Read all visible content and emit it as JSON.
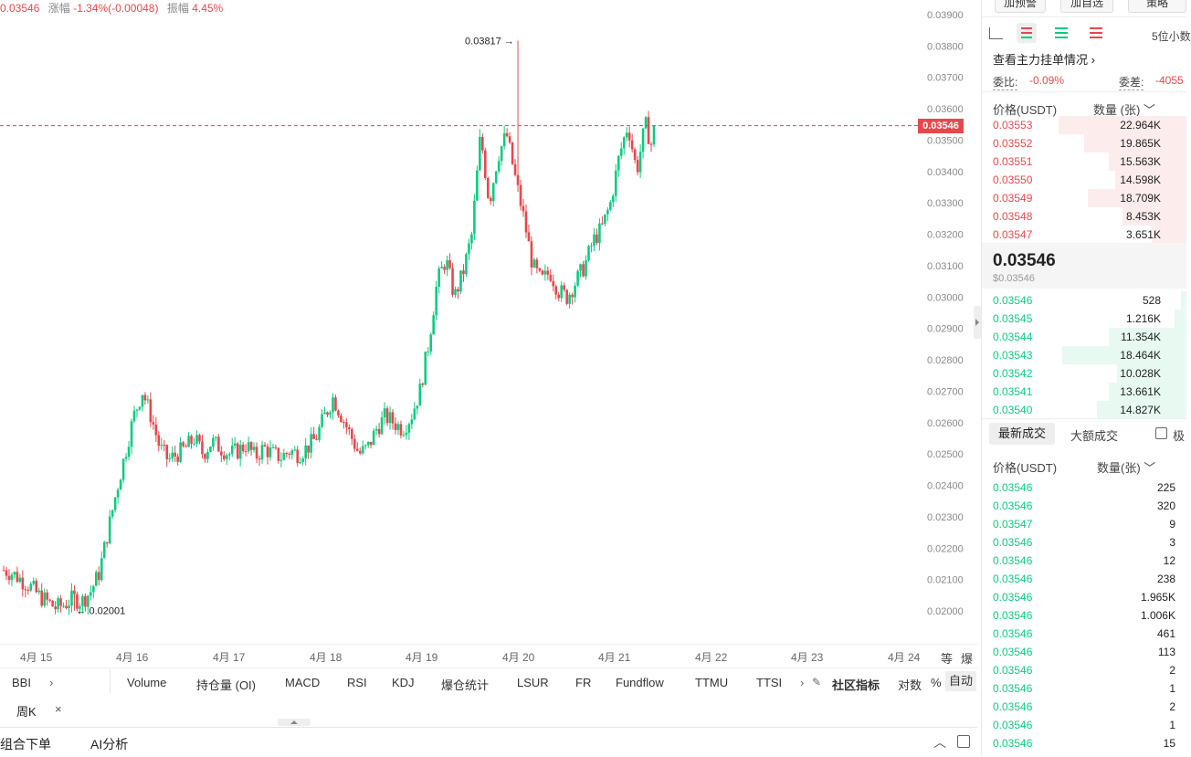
{
  "header": {
    "ohlc_close": "0.03546",
    "change_label": "涨幅",
    "change_value": "-1.34%(-0.00048)",
    "amp_label": "振幅",
    "amp_value": "4.45%"
  },
  "chart": {
    "current_price": "0.03546",
    "high_marker": "0.03817",
    "low_marker": "0.02001",
    "y_ticks": [
      "0.03900",
      "0.03800",
      "0.03700",
      "0.03600",
      "0.03500",
      "0.03400",
      "0.03300",
      "0.03200",
      "0.03100",
      "0.03000",
      "0.02900",
      "0.02800",
      "0.02700",
      "0.02600",
      "0.02500",
      "0.02400",
      "0.02300",
      "0.02200",
      "0.02100",
      "0.02000"
    ],
    "x_ticks": [
      "4月 15",
      "4月 16",
      "4月 17",
      "4月 18",
      "4月 19",
      "4月 20",
      "4月 21",
      "4月 22",
      "4月 23",
      "4月 24"
    ],
    "axis_buttons": [
      "等",
      "爆"
    ],
    "colors": {
      "up": "#0ecb81",
      "down": "#e5484d"
    }
  },
  "chart_data": {
    "type": "candlestick",
    "x_range": [
      "4月 15",
      "4月 21"
    ],
    "ylim": [
      0.0196,
      0.0392
    ],
    "high": 0.03817,
    "low": 0.02001,
    "last": 0.03546,
    "close_path": [
      0.0213,
      0.0212,
      0.021,
      0.0208,
      0.0205,
      0.0203,
      0.0201,
      0.0202,
      0.0204,
      0.0203,
      0.0206,
      0.0212,
      0.0225,
      0.0238,
      0.025,
      0.0262,
      0.027,
      0.0262,
      0.0252,
      0.0248,
      0.025,
      0.0252,
      0.0255,
      0.025,
      0.0254,
      0.0252,
      0.025,
      0.0251,
      0.0253,
      0.0249,
      0.0252,
      0.025,
      0.0249,
      0.0251,
      0.025,
      0.0252,
      0.0255,
      0.0262,
      0.0268,
      0.0262,
      0.0256,
      0.025,
      0.0252,
      0.0258,
      0.0262,
      0.026,
      0.0258,
      0.0262,
      0.027,
      0.0285,
      0.0305,
      0.0312,
      0.03,
      0.0308,
      0.032,
      0.0352,
      0.033,
      0.0345,
      0.0352,
      0.0338,
      0.0325,
      0.031,
      0.0305,
      0.0308,
      0.0302,
      0.03,
      0.0305,
      0.031,
      0.0318,
      0.0322,
      0.033,
      0.0345,
      0.0355,
      0.034,
      0.0355,
      0.0346
    ]
  },
  "indicators": [
    "BBI",
    "Volume",
    "持仓量 (OI)",
    "MACD",
    "RSI",
    "KDJ",
    "爆仓统计",
    "LSUR",
    "FR",
    "Fundflow",
    "TTMU",
    "TTSI"
  ],
  "indicator_tools": {
    "community": "社区指标",
    "log": "对数",
    "percent": "%",
    "auto": "自动"
  },
  "period": {
    "label": "周K",
    "close": "×"
  },
  "bottom": {
    "combo": "组合下单",
    "ai": "AI分析"
  },
  "right": {
    "top_buttons": [
      "加预警",
      "加自选",
      "策略"
    ],
    "precision": "5位小数",
    "main_orders": "查看主力挂单情况",
    "ratio_label": "委比:",
    "ratio_value": "-0.09%",
    "diff_label": "委差:",
    "diff_value": "-4055",
    "col_price": "价格(USDT)",
    "col_qty": "数量 (张)",
    "asks": [
      {
        "p": "0.03553",
        "q": "22.964K",
        "w": 0.66
      },
      {
        "p": "0.03552",
        "q": "19.865K",
        "w": 0.53
      },
      {
        "p": "0.03551",
        "q": "15.563K",
        "w": 0.4
      },
      {
        "p": "0.03550",
        "q": "14.598K",
        "w": 0.37
      },
      {
        "p": "0.03549",
        "q": "18.709K",
        "w": 0.51
      },
      {
        "p": "0.03548",
        "q": "8.453K",
        "w": 0.33
      },
      {
        "p": "0.03547",
        "q": "3.651K",
        "w": 0.18
      }
    ],
    "mid_price": "0.03546",
    "mid_usd": "$0.03546",
    "bids": [
      {
        "p": "0.03546",
        "q": "528",
        "w": 0.03
      },
      {
        "p": "0.03545",
        "q": "1.216K",
        "w": 0.06
      },
      {
        "p": "0.03544",
        "q": "11.354K",
        "w": 0.4
      },
      {
        "p": "0.03543",
        "q": "18.464K",
        "w": 0.64
      },
      {
        "p": "0.03542",
        "q": "10.028K",
        "w": 0.36
      },
      {
        "p": "0.03541",
        "q": "13.661K",
        "w": 0.4
      },
      {
        "p": "0.03540",
        "q": "14.827K",
        "w": 0.46
      }
    ],
    "trade_tabs": [
      "最新成交",
      "大额成交"
    ],
    "trade_check": "极",
    "trade_col_price": "价格(USDT)",
    "trade_col_qty": "数量(张)",
    "trades": [
      {
        "p": "0.03546",
        "q": "225"
      },
      {
        "p": "0.03546",
        "q": "320"
      },
      {
        "p": "0.03547",
        "q": "9"
      },
      {
        "p": "0.03546",
        "q": "3"
      },
      {
        "p": "0.03546",
        "q": "12"
      },
      {
        "p": "0.03546",
        "q": "238"
      },
      {
        "p": "0.03546",
        "q": "1.965K"
      },
      {
        "p": "0.03546",
        "q": "1.006K"
      },
      {
        "p": "0.03546",
        "q": "461"
      },
      {
        "p": "0.03546",
        "q": "113"
      },
      {
        "p": "0.03546",
        "q": "2"
      },
      {
        "p": "0.03546",
        "q": "1"
      },
      {
        "p": "0.03546",
        "q": "2"
      },
      {
        "p": "0.03546",
        "q": "1"
      },
      {
        "p": "0.03546",
        "q": "15"
      }
    ]
  }
}
